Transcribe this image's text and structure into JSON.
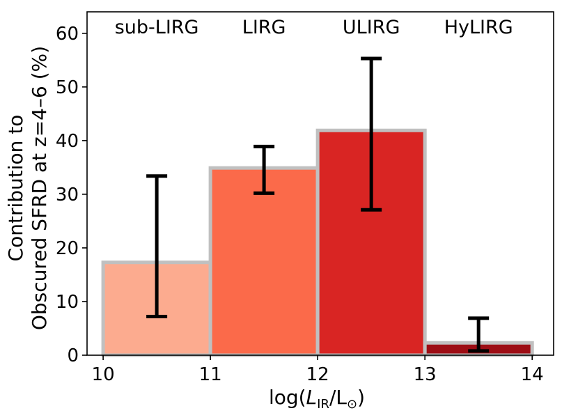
{
  "chart_data": {
    "type": "bar",
    "xlabel": "log(L_IR/L_⊙)",
    "xlabel_parts": {
      "prefix": "log(",
      "L": "L",
      "sub": "IR",
      "mid": "/L",
      "sun": "⊙",
      "suffix": ")"
    },
    "ylabel": [
      "Contribution to",
      "Obscured SFRD at z=4–6 (%)"
    ],
    "xlim": [
      9.85,
      14.2
    ],
    "ylim": [
      0,
      64
    ],
    "xticks": [
      10,
      11,
      12,
      13,
      14
    ],
    "yticks": [
      0,
      10,
      20,
      30,
      40,
      50,
      60
    ],
    "grid": false,
    "bins": [
      {
        "label": "sub-LIRG",
        "x0": 10,
        "x1": 11,
        "value": 17.3,
        "err_low": 7.2,
        "err_high": 33.4,
        "color": "#fcab8f"
      },
      {
        "label": "LIRG",
        "x0": 11,
        "x1": 12,
        "value": 34.9,
        "err_low": 30.2,
        "err_high": 38.9,
        "color": "#fb6a4a"
      },
      {
        "label": "ULIRG",
        "x0": 12,
        "x1": 13,
        "value": 41.9,
        "err_low": 27.1,
        "err_high": 55.3,
        "color": "#d92523"
      },
      {
        "label": "HyLIRG",
        "x0": 13,
        "x1": 14,
        "value": 2.3,
        "err_low": 0.8,
        "err_high": 6.9,
        "color": "#9d0d14"
      }
    ],
    "bar_edge_color": "#c0c0c0",
    "errorbar_color": "#000000"
  }
}
